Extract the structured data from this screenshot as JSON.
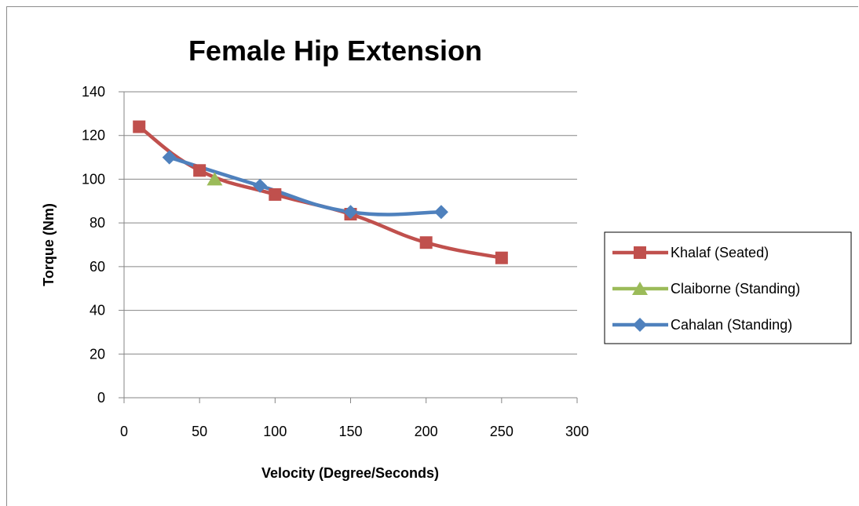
{
  "chart_data": {
    "type": "scatter",
    "title": "Female Hip Extension",
    "xlabel": "Velocity (Degree/Seconds)",
    "ylabel": "Torque (Nm)",
    "xlim": [
      0,
      300
    ],
    "ylim": [
      0,
      140
    ],
    "x_ticks": [
      0,
      50,
      100,
      150,
      200,
      250,
      300
    ],
    "y_ticks": [
      0,
      20,
      40,
      60,
      80,
      100,
      120,
      140
    ],
    "grid": "horizontal",
    "legend_position": "right",
    "series": [
      {
        "name": "Khalaf (Seated)",
        "color": "#c0504d",
        "marker": "square",
        "x": [
          10,
          50,
          100,
          150,
          200,
          250
        ],
        "y": [
          124,
          104,
          93,
          84,
          71,
          64
        ]
      },
      {
        "name": "Claiborne (Standing)",
        "color": "#9bbb59",
        "marker": "triangle",
        "x": [
          60
        ],
        "y": [
          100
        ]
      },
      {
        "name": "Cahalan (Standing)",
        "color": "#4f81bd",
        "marker": "diamond",
        "x": [
          30,
          90,
          150,
          210
        ],
        "y": [
          110,
          97,
          85,
          85
        ]
      }
    ]
  }
}
